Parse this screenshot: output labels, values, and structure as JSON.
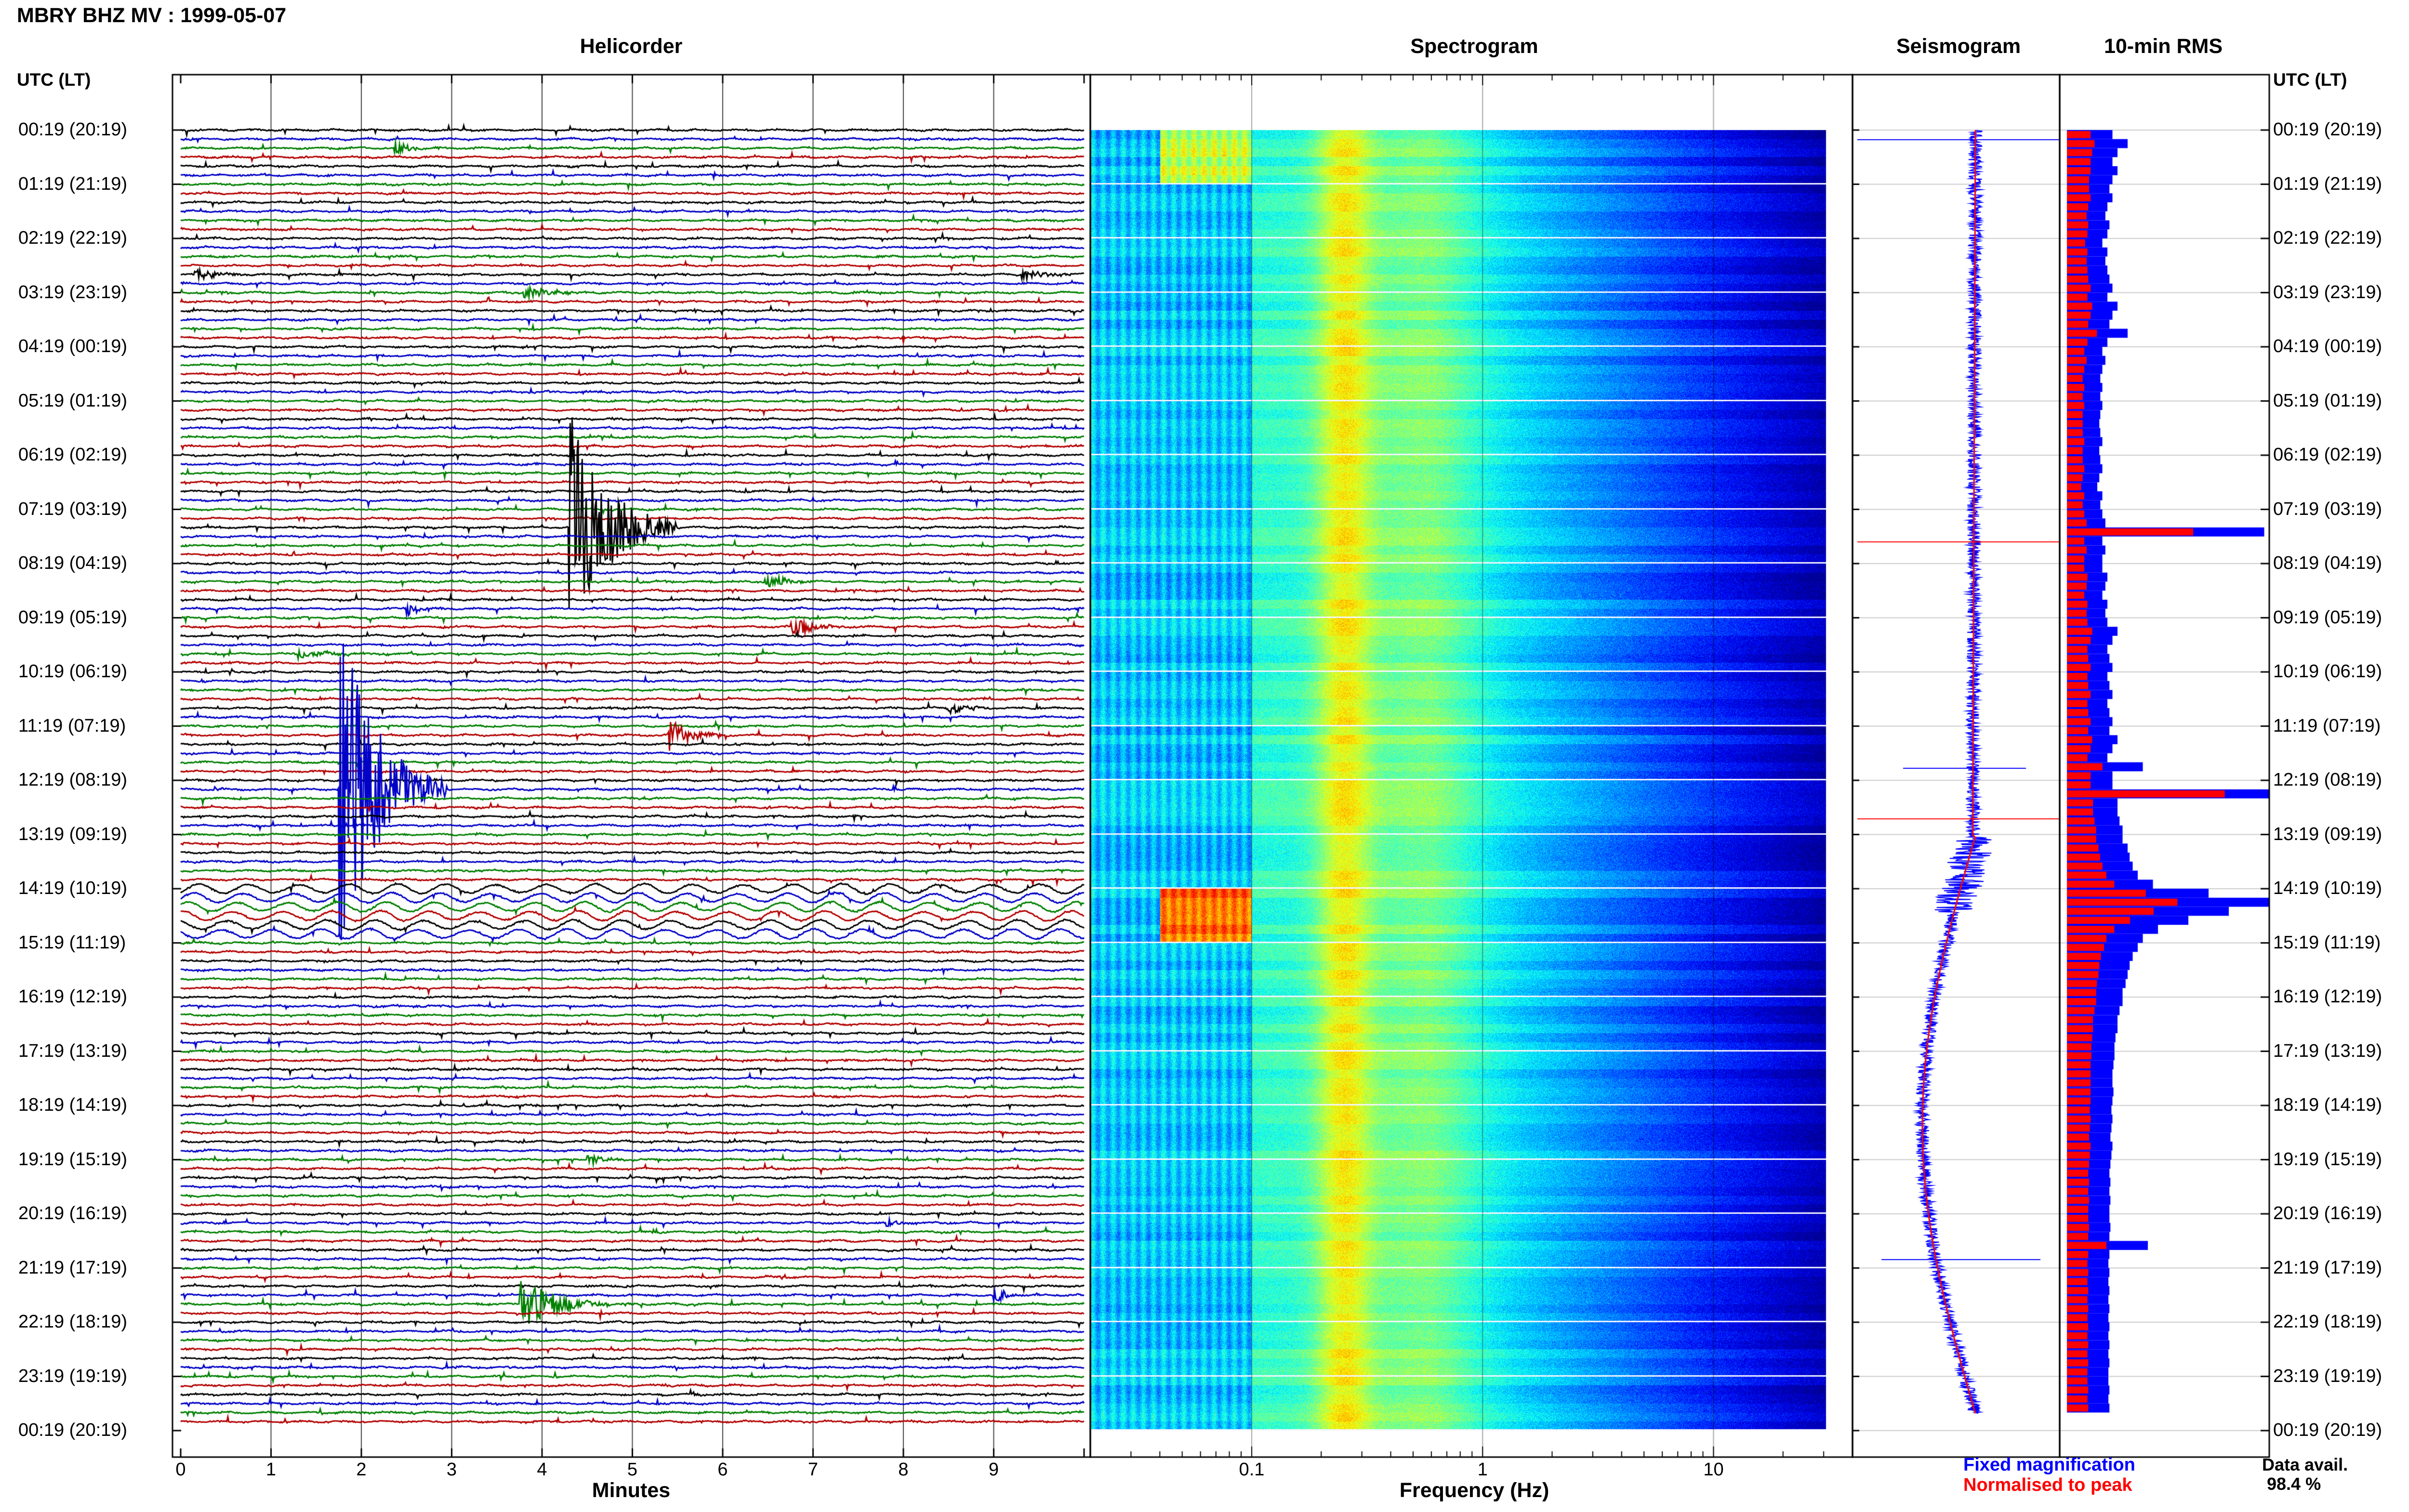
{
  "title": "MBRY BHZ MV : 1999-05-07",
  "panels": {
    "helicorder": "Helicorder",
    "spectrogram": "Spectrogram",
    "seismogram": "Seismogram",
    "rms": "10-min RMS"
  },
  "time_axis_header": "UTC (LT)",
  "time_labels": [
    "00:19 (20:19)",
    "01:19 (21:19)",
    "02:19 (22:19)",
    "03:19 (23:19)",
    "04:19 (00:19)",
    "05:19 (01:19)",
    "06:19 (02:19)",
    "07:19 (03:19)",
    "08:19 (04:19)",
    "09:19 (05:19)",
    "10:19 (06:19)",
    "11:19 (07:19)",
    "12:19 (08:19)",
    "13:19 (09:19)",
    "14:19 (10:19)",
    "15:19 (11:19)",
    "16:19 (12:19)",
    "17:19 (13:19)",
    "18:19 (14:19)",
    "19:19 (15:19)",
    "20:19 (16:19)",
    "21:19 (17:19)",
    "22:19 (18:19)",
    "23:19 (19:19)",
    "00:19 (20:19)"
  ],
  "helicorder_xlabel": "Minutes",
  "helicorder_ticks": [
    "0",
    "1",
    "2",
    "3",
    "4",
    "5",
    "6",
    "7",
    "8",
    "9"
  ],
  "spectrogram_xlabel": "Frequency (Hz)",
  "spectrogram_ticks": [
    "0.1",
    "1",
    "10"
  ],
  "legend": {
    "fixed": "Fixed magnification",
    "normalised": "Normalised to peak"
  },
  "data_availability": {
    "label": "Data avail.",
    "value": "98.4 %"
  },
  "colors": {
    "trace_cycle": [
      "#000000",
      "#0000c8",
      "#008000",
      "#b40000"
    ],
    "fixed": "#0000ff",
    "normalised": "#ff0000"
  },
  "chart_data": {
    "type": "line",
    "title": "MBRY BHZ MV : 1999-05-07",
    "helicorder": {
      "xlabel": "Minutes",
      "xlim": [
        0,
        10
      ],
      "rows_per_hour": 6,
      "hours": 24,
      "events": [
        {
          "row": 2,
          "minute": 2.35,
          "amplitude": 0.35,
          "duration": 0.3
        },
        {
          "row": 16,
          "minute": 0.15,
          "amplitude": 0.3,
          "duration": 0.4
        },
        {
          "row": 16,
          "minute": 9.3,
          "amplitude": 0.3,
          "duration": 0.4
        },
        {
          "row": 18,
          "minute": 3.8,
          "amplitude": 0.35,
          "duration": 0.4
        },
        {
          "row": 44,
          "minute": 4.3,
          "amplitude": 6.0,
          "duration": 0.6
        },
        {
          "row": 50,
          "minute": 6.45,
          "amplitude": 0.5,
          "duration": 0.3
        },
        {
          "row": 53,
          "minute": 2.5,
          "amplitude": 0.4,
          "duration": 0.2
        },
        {
          "row": 55,
          "minute": 6.75,
          "amplitude": 0.6,
          "duration": 0.3
        },
        {
          "row": 58,
          "minute": 1.3,
          "amplitude": 0.25,
          "duration": 0.5
        },
        {
          "row": 64,
          "minute": 8.5,
          "amplitude": 0.3,
          "duration": 0.3
        },
        {
          "row": 67,
          "minute": 5.4,
          "amplitude": 0.9,
          "duration": 0.3
        },
        {
          "row": 73,
          "minute": 1.75,
          "amplitude": 9.0,
          "duration": 0.6
        },
        {
          "row": 73,
          "minute": 0.35,
          "amplitude": 0.25,
          "duration": 0.1
        },
        {
          "row": 121,
          "minute": 7.8,
          "amplitude": 0.3,
          "duration": 0.2
        },
        {
          "row": 114,
          "minute": 4.5,
          "amplitude": 0.4,
          "duration": 0.2
        },
        {
          "row": 130,
          "minute": 3.75,
          "amplitude": 1.6,
          "duration": 0.5
        },
        {
          "row": 129,
          "minute": 9.0,
          "amplitude": 0.5,
          "duration": 0.2
        }
      ],
      "microseism_rows": [
        84,
        85,
        86,
        87,
        88,
        89
      ]
    },
    "spectrogram": {
      "xlabel": "Frequency (Hz)",
      "xscale": "log",
      "xlim": [
        0.02,
        40
      ],
      "ticks": [
        0.1,
        1,
        10
      ],
      "colormap": "jet"
    },
    "seismogram": {
      "series": [
        {
          "name": "Fixed magnification",
          "color": "#0000ff"
        },
        {
          "name": "Normalised to peak",
          "color": "#ff0000"
        }
      ]
    },
    "rms": {
      "series_names": [
        "Fixed magnification",
        "Normalised to peak"
      ],
      "fixed": [
        0.45,
        0.6,
        0.5,
        0.45,
        0.5,
        0.45,
        0.42,
        0.45,
        0.4,
        0.38,
        0.42,
        0.4,
        0.35,
        0.4,
        0.38,
        0.4,
        0.42,
        0.45,
        0.4,
        0.5,
        0.45,
        0.42,
        0.6,
        0.4,
        0.35,
        0.38,
        0.35,
        0.33,
        0.35,
        0.33,
        0.35,
        0.33,
        0.32,
        0.33,
        0.35,
        0.32,
        0.33,
        0.35,
        0.32,
        0.3,
        0.35,
        0.33,
        0.35,
        0.38,
        1.95,
        0.35,
        0.38,
        0.35,
        0.35,
        0.4,
        0.38,
        0.35,
        0.4,
        0.38,
        0.4,
        0.5,
        0.45,
        0.4,
        0.42,
        0.45,
        0.4,
        0.42,
        0.45,
        0.4,
        0.42,
        0.45,
        0.42,
        0.5,
        0.45,
        0.4,
        0.75,
        0.45,
        0.45,
        2.0,
        0.5,
        0.5,
        0.52,
        0.55,
        0.55,
        0.6,
        0.62,
        0.65,
        0.7,
        0.85,
        1.4,
        2.0,
        1.6,
        1.2,
        0.9,
        0.75,
        0.7,
        0.65,
        0.62,
        0.6,
        0.58,
        0.55,
        0.55,
        0.52,
        0.5,
        0.5,
        0.48,
        0.47,
        0.47,
        0.46,
        0.45,
        0.45,
        0.46,
        0.45,
        0.44,
        0.45,
        0.44,
        0.43,
        0.45,
        0.44,
        0.43,
        0.42,
        0.43,
        0.42,
        0.43,
        0.42,
        0.42,
        0.43,
        0.42,
        0.8,
        0.42,
        0.41,
        0.42,
        0.41,
        0.42,
        0.41,
        0.42,
        0.41,
        0.42,
        0.41,
        0.42,
        0.41,
        0.42,
        0.41,
        0.41,
        0.42,
        0.41,
        0.42
      ],
      "normalised": [
        0.3,
        0.35,
        0.32,
        0.3,
        0.3,
        0.28,
        0.28,
        0.3,
        0.27,
        0.25,
        0.27,
        0.26,
        0.23,
        0.26,
        0.25,
        0.26,
        0.27,
        0.3,
        0.26,
        0.32,
        0.3,
        0.27,
        0.38,
        0.26,
        0.22,
        0.25,
        0.22,
        0.2,
        0.22,
        0.2,
        0.22,
        0.2,
        0.2,
        0.2,
        0.22,
        0.2,
        0.2,
        0.22,
        0.2,
        0.18,
        0.22,
        0.2,
        0.22,
        0.25,
        1.6,
        0.22,
        0.25,
        0.22,
        0.22,
        0.26,
        0.25,
        0.22,
        0.26,
        0.25,
        0.26,
        0.32,
        0.3,
        0.26,
        0.27,
        0.3,
        0.26,
        0.27,
        0.3,
        0.26,
        0.27,
        0.3,
        0.27,
        0.32,
        0.3,
        0.26,
        0.45,
        0.3,
        0.3,
        2.0,
        0.33,
        0.33,
        0.35,
        0.37,
        0.37,
        0.4,
        0.42,
        0.45,
        0.5,
        0.6,
        1.0,
        1.4,
        1.1,
        0.8,
        0.6,
        0.5,
        0.47,
        0.43,
        0.41,
        0.4,
        0.38,
        0.37,
        0.37,
        0.35,
        0.33,
        0.33,
        0.32,
        0.31,
        0.31,
        0.3,
        0.3,
        0.3,
        0.3,
        0.3,
        0.29,
        0.3,
        0.29,
        0.28,
        0.3,
        0.29,
        0.28,
        0.27,
        0.28,
        0.27,
        0.28,
        0.27,
        0.27,
        0.28,
        0.27,
        0.5,
        0.27,
        0.26,
        0.27,
        0.26,
        0.27,
        0.26,
        0.27,
        0.26,
        0.27,
        0.26,
        0.27,
        0.26,
        0.27,
        0.26,
        0.26,
        0.27,
        0.26,
        0.27
      ]
    }
  }
}
